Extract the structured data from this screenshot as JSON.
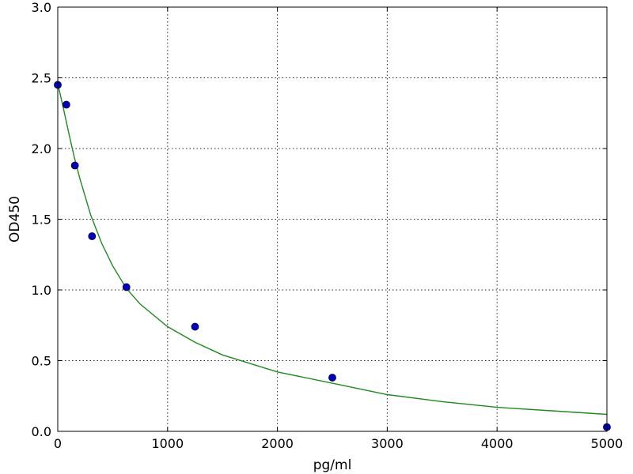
{
  "chart_data": {
    "type": "scatter",
    "title": "",
    "xlabel": "pg/ml",
    "ylabel": "OD450",
    "xlim": [
      0,
      5000
    ],
    "ylim": [
      0,
      3.0
    ],
    "x_ticks": [
      0,
      1000,
      2000,
      3000,
      4000,
      5000
    ],
    "x_tick_labels": [
      "0",
      "1000",
      "2000",
      "3000",
      "4000",
      "5000"
    ],
    "y_ticks": [
      0,
      0.5,
      1.0,
      1.5,
      2.0,
      2.5,
      3.0
    ],
    "y_tick_labels": [
      "0.0",
      "0.5",
      "1.0",
      "1.5",
      "2.0",
      "2.5",
      "3.0"
    ],
    "grid": true,
    "legend": "none",
    "series": [
      {
        "kind": "points",
        "color": "#0000bf",
        "x": [
          0,
          78,
          156,
          312,
          625,
          1250,
          2500,
          5000
        ],
        "y": [
          2.45,
          2.31,
          1.88,
          1.38,
          1.02,
          0.74,
          0.38,
          0.03
        ]
      },
      {
        "kind": "fit-curve",
        "color": "#1f8a1f",
        "x": [
          0,
          50,
          100,
          150,
          200,
          300,
          400,
          500,
          625,
          750,
          1000,
          1250,
          1500,
          2000,
          2500,
          3000,
          3500,
          4000,
          4500,
          5000
        ],
        "y": [
          2.46,
          2.29,
          2.11,
          1.94,
          1.79,
          1.53,
          1.33,
          1.17,
          1.01,
          0.9,
          0.74,
          0.63,
          0.54,
          0.42,
          0.34,
          0.26,
          0.21,
          0.17,
          0.145,
          0.12
        ]
      }
    ]
  }
}
